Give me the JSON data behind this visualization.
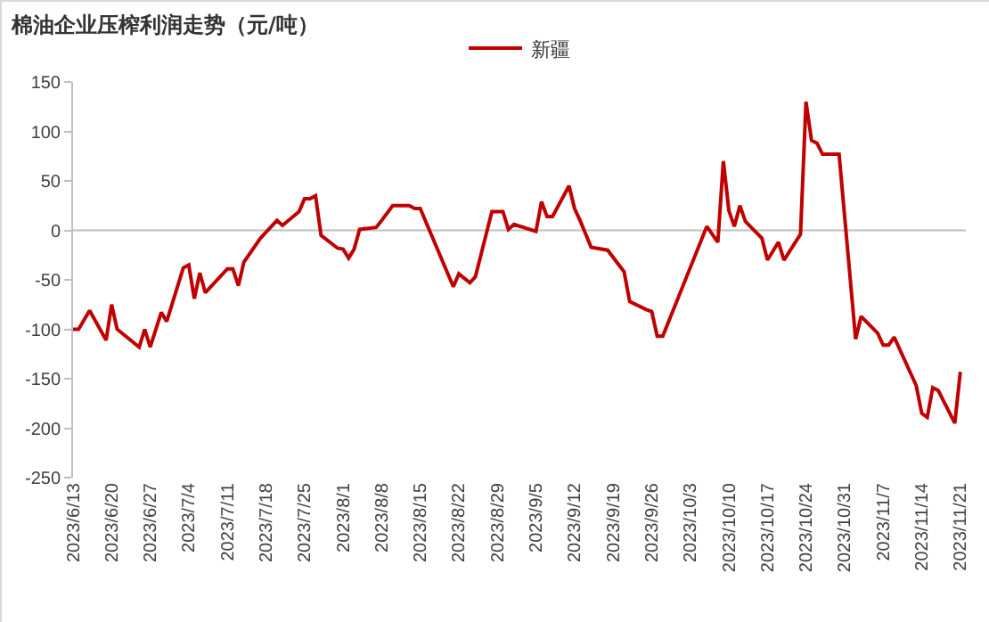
{
  "chart_data": {
    "type": "line",
    "title": "棉油企业压榨利润走势（元/吨）",
    "x": [
      "2023-06-13",
      "2023-06-14",
      "2023-06-16",
      "2023-06-19",
      "2023-06-20",
      "2023-06-21",
      "2023-06-25",
      "2023-06-26",
      "2023-06-27",
      "2023-06-29",
      "2023-06-30",
      "2023-07-03",
      "2023-07-04",
      "2023-07-05",
      "2023-07-06",
      "2023-07-07",
      "2023-07-11",
      "2023-07-12",
      "2023-07-13",
      "2023-07-14",
      "2023-07-17",
      "2023-07-18",
      "2023-07-20",
      "2023-07-21",
      "2023-07-24",
      "2023-07-25",
      "2023-07-26",
      "2023-07-27",
      "2023-07-28",
      "2023-07-31",
      "2023-08-01",
      "2023-08-02",
      "2023-08-03",
      "2023-08-04",
      "2023-08-07",
      "2023-08-08",
      "2023-08-10",
      "2023-08-13",
      "2023-08-14",
      "2023-08-15",
      "2023-08-21",
      "2023-08-22",
      "2023-08-24",
      "2023-08-25",
      "2023-08-28",
      "2023-08-30",
      "2023-08-31",
      "2023-09-01",
      "2023-09-05",
      "2023-09-06",
      "2023-09-07",
      "2023-09-08",
      "2023-09-11",
      "2023-09-12",
      "2023-09-13",
      "2023-09-15",
      "2023-09-18",
      "2023-09-21",
      "2023-09-22",
      "2023-09-25",
      "2023-09-26",
      "2023-09-27",
      "2023-09-28",
      "2023-10-06",
      "2023-10-08",
      "2023-10-09",
      "2023-10-10",
      "2023-10-11",
      "2023-10-12",
      "2023-10-13",
      "2023-10-16",
      "2023-10-17",
      "2023-10-19",
      "2023-10-20",
      "2023-10-23",
      "2023-10-24",
      "2023-10-25",
      "2023-10-26",
      "2023-10-27",
      "2023-10-30",
      "2023-11-02",
      "2023-11-03",
      "2023-11-06",
      "2023-11-07",
      "2023-11-08",
      "2023-11-09",
      "2023-11-13",
      "2023-11-14",
      "2023-11-15",
      "2023-11-16",
      "2023-11-17",
      "2023-11-20",
      "2023-11-21"
    ],
    "series": [
      {
        "name": "新疆",
        "color": "#c00000",
        "values": [
          -100,
          -100,
          -81,
          -111,
          -75,
          -100,
          -118,
          -100,
          -118,
          -83,
          -92,
          -38,
          -35,
          -69,
          -43,
          -63,
          -39,
          -39,
          -56,
          -32,
          -8,
          -2,
          10,
          5,
          19,
          32,
          32,
          35,
          -5,
          -18,
          -19,
          -28,
          -19,
          1,
          3,
          10,
          25,
          25,
          22,
          22,
          -57,
          -44,
          -53,
          -47,
          19,
          19,
          1,
          6,
          -1,
          29,
          14,
          14,
          45,
          22,
          10,
          -17,
          -20,
          -42,
          -72,
          -80,
          -82,
          -107,
          -107,
          4,
          -12,
          70,
          20,
          4,
          25,
          9,
          -8,
          -30,
          -12,
          -30,
          -4,
          130,
          91,
          88,
          77,
          77,
          -110,
          -87,
          -104,
          -116,
          -116,
          -108,
          -157,
          -185,
          -189,
          -159,
          -162,
          -195,
          -143
        ]
      }
    ],
    "xlim": [
      "2023-06-13",
      "2023-11-22"
    ],
    "xticks": [
      {
        "value": "2023-06-13",
        "label": "2023/6/13"
      },
      {
        "value": "2023-06-20",
        "label": "2023/6/20"
      },
      {
        "value": "2023-06-27",
        "label": "2023/6/27"
      },
      {
        "value": "2023-07-04",
        "label": "2023/7/4"
      },
      {
        "value": "2023-07-11",
        "label": "2023/7/11"
      },
      {
        "value": "2023-07-18",
        "label": "2023/7/18"
      },
      {
        "value": "2023-07-25",
        "label": "2023/7/25"
      },
      {
        "value": "2023-08-01",
        "label": "2023/8/1"
      },
      {
        "value": "2023-08-08",
        "label": "2023/8/8"
      },
      {
        "value": "2023-08-15",
        "label": "2023/8/15"
      },
      {
        "value": "2023-08-22",
        "label": "2023/8/22"
      },
      {
        "value": "2023-08-29",
        "label": "2023/8/29"
      },
      {
        "value": "2023-09-05",
        "label": "2023/9/5"
      },
      {
        "value": "2023-09-12",
        "label": "2023/9/12"
      },
      {
        "value": "2023-09-19",
        "label": "2023/9/19"
      },
      {
        "value": "2023-09-26",
        "label": "2023/9/26"
      },
      {
        "value": "2023-10-03",
        "label": "2023/10/3"
      },
      {
        "value": "2023-10-10",
        "label": "2023/10/10"
      },
      {
        "value": "2023-10-17",
        "label": "2023/10/17"
      },
      {
        "value": "2023-10-24",
        "label": "2023/10/24"
      },
      {
        "value": "2023-10-31",
        "label": "2023/10/31"
      },
      {
        "value": "2023-11-07",
        "label": "2023/11/7"
      },
      {
        "value": "2023-11-14",
        "label": "2023/11/14"
      },
      {
        "value": "2023-11-21",
        "label": "2023/11/21"
      }
    ],
    "ylim": [
      -250,
      150
    ],
    "yticks": [
      -250,
      -200,
      -150,
      -100,
      -50,
      0,
      50,
      100,
      150
    ],
    "ref_lines": [
      {
        "axis": "y",
        "value": 0,
        "color": "#bfbfbf"
      }
    ],
    "grid": false,
    "legend": "top",
    "marker": "none",
    "line_style": "solid"
  }
}
